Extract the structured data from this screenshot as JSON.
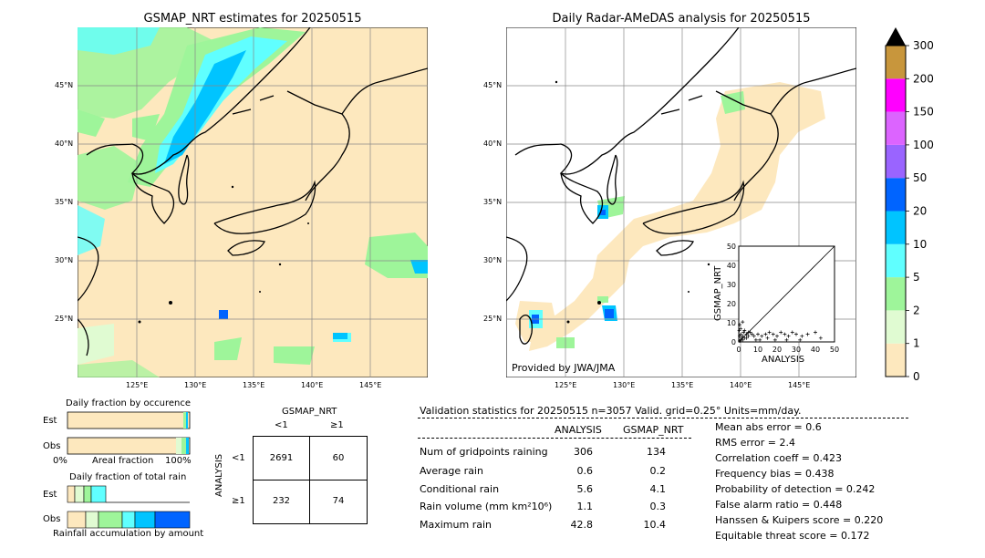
{
  "left_map": {
    "title": "GSMAP_NRT estimates for 20250515",
    "lat_labels": [
      "45°N",
      "40°N",
      "35°N",
      "30°N",
      "25°N"
    ],
    "lon_labels": [
      "125°E",
      "130°E",
      "135°E",
      "140°E",
      "145°E"
    ]
  },
  "right_map": {
    "title": "Daily Radar-AMeDAS analysis for 20250515",
    "lat_labels": [
      "45°N",
      "40°N",
      "35°N",
      "30°N",
      "25°N"
    ],
    "lon_labels": [
      "125°E",
      "130°E",
      "135°E",
      "140°E",
      "145°E"
    ],
    "credit": "Provided by JWA/JMA"
  },
  "colorbar": {
    "levels": [
      "0",
      "1",
      "2",
      "5",
      "10",
      "20",
      "50",
      "100",
      "150",
      "200",
      "300"
    ],
    "colors": [
      "#fde8be",
      "#e0fbd2",
      "#9ef59a",
      "#60ffff",
      "#00c4ff",
      "#0064ff",
      "#9a64ff",
      "#dc64ff",
      "#ff00ff",
      "#c8963c"
    ]
  },
  "scatter_inset": {
    "xlabel": "ANALYSIS",
    "ylabel": "GSMAP_NRT",
    "ticks": [
      "0",
      "10",
      "20",
      "30",
      "40",
      "50"
    ]
  },
  "chart_data": [
    {
      "type": "scatter",
      "title": "",
      "xlabel": "ANALYSIS",
      "ylabel": "GSMAP_NRT",
      "xlim": [
        0,
        50
      ],
      "ylim": [
        0,
        50
      ],
      "points": [
        [
          0.5,
          0.5
        ],
        [
          1,
          1
        ],
        [
          1.5,
          2
        ],
        [
          2,
          1
        ],
        [
          0.5,
          3
        ],
        [
          1,
          4
        ],
        [
          2,
          3
        ],
        [
          3,
          2
        ],
        [
          0.3,
          6
        ],
        [
          1,
          7
        ],
        [
          2.5,
          5
        ],
        [
          3,
          6
        ],
        [
          4,
          4
        ],
        [
          5,
          3
        ],
        [
          0.5,
          9
        ],
        [
          6,
          5
        ],
        [
          7,
          4
        ],
        [
          8,
          3
        ],
        [
          10,
          4
        ],
        [
          12,
          3
        ],
        [
          14,
          4
        ],
        [
          16,
          5
        ],
        [
          18,
          4
        ],
        [
          20,
          3
        ],
        [
          22,
          5
        ],
        [
          24,
          4
        ],
        [
          26,
          3
        ],
        [
          28,
          5
        ],
        [
          30,
          4
        ],
        [
          33,
          3
        ],
        [
          36,
          4
        ],
        [
          40,
          5
        ],
        [
          42.8,
          2
        ],
        [
          2,
          10.4
        ],
        [
          4,
          2
        ],
        [
          5,
          5
        ],
        [
          9,
          1
        ],
        [
          11,
          1
        ],
        [
          15,
          2
        ],
        [
          19,
          1
        ],
        [
          25,
          1
        ],
        [
          32,
          1
        ]
      ]
    }
  ],
  "occurrence": {
    "title": "Daily fraction by occurence",
    "rows": [
      "Est",
      "Obs"
    ],
    "axis_left": "0%",
    "axis_mid": "Areal fraction",
    "axis_right": "100%"
  },
  "rainfall": {
    "title": "Daily fraction of total rain",
    "rows": [
      "Est",
      "Obs"
    ],
    "axis_label": "Rainfall accumulation by amount"
  },
  "contingency": {
    "col_title": "GSMAP_NRT",
    "col_headers": [
      "<1",
      "≥1"
    ],
    "row_title": "ANALYSIS",
    "row_headers": [
      "<1",
      "≥1"
    ],
    "cells": [
      [
        "2691",
        "60"
      ],
      [
        "232",
        "74"
      ]
    ]
  },
  "validation": {
    "header": "Validation statistics for 20250515  n=3057 Valid. grid=0.25° Units=mm/day.",
    "col_analysis": "ANALYSIS",
    "col_gsmap": "GSMAP_NRT",
    "rows": [
      {
        "label": "Num of gridpoints raining",
        "analysis": "306",
        "gsmap": "134"
      },
      {
        "label": "Average rain",
        "analysis": "0.6",
        "gsmap": "0.2"
      },
      {
        "label": "Conditional rain",
        "analysis": "5.6",
        "gsmap": "4.1"
      },
      {
        "label": "Rain volume (mm km²10⁶)",
        "analysis": "1.1",
        "gsmap": "0.3"
      },
      {
        "label": "Maximum rain",
        "analysis": "42.8",
        "gsmap": "10.4"
      }
    ],
    "scores": [
      "Mean abs error =    0.6",
      "RMS error =    2.4",
      "Correlation coeff =  0.423",
      "Frequency bias =  0.438",
      "Probability of detection =  0.242",
      "False alarm ratio =  0.448",
      "Hanssen & Kuipers score =  0.220",
      "Equitable threat score =  0.172"
    ]
  }
}
